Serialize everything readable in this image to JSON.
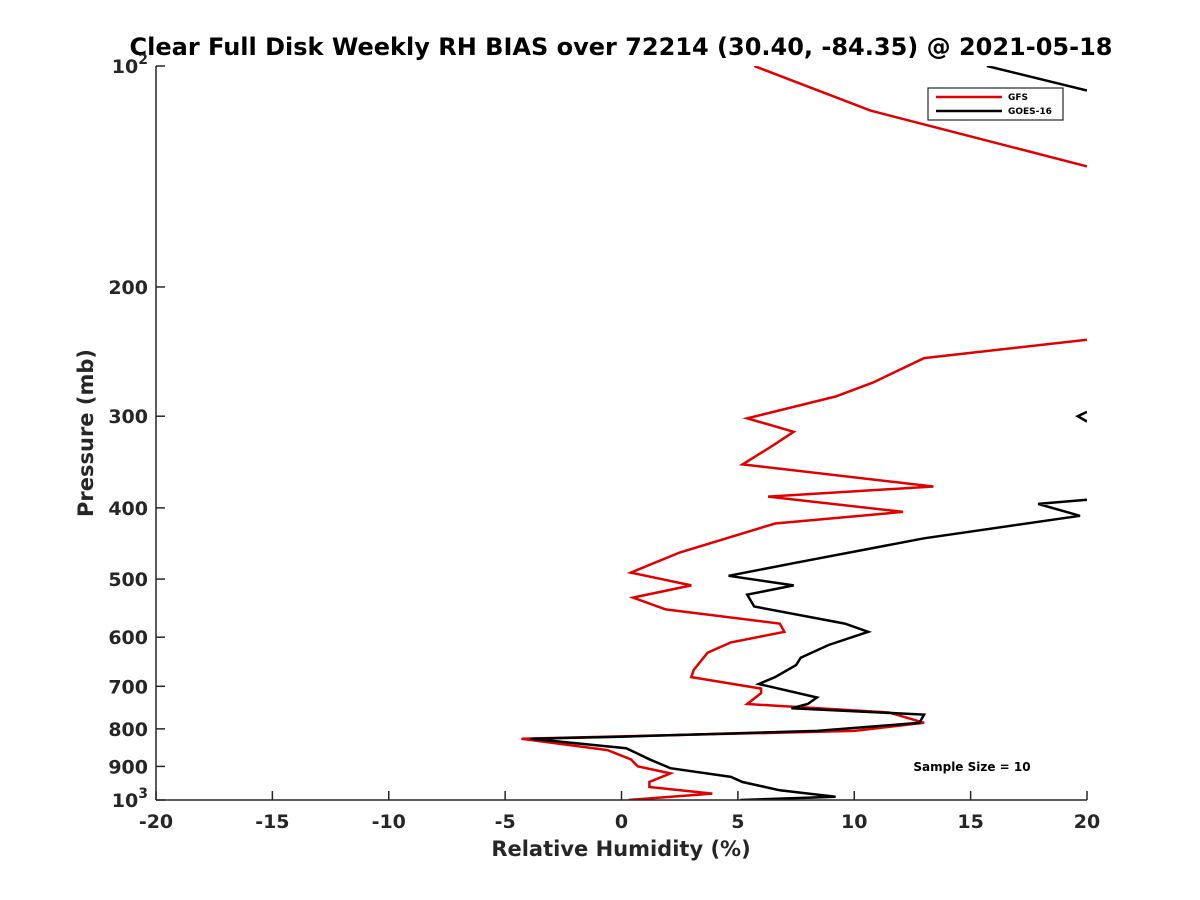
{
  "chart_data": {
    "type": "line",
    "title": "Clear Full Disk Weekly RH BIAS over 72214 (30.40, -84.35) @ 2021-05-18",
    "xlabel": "Relative Humidity (%)",
    "ylabel": "Pressure (mb)",
    "xlim": [
      -20,
      20
    ],
    "ylim": [
      100,
      1000
    ],
    "y_scale": "log",
    "y_reversed": true,
    "grid": false,
    "legend_position": "top-right",
    "x_ticks": [
      -20,
      -15,
      -10,
      -5,
      0,
      5,
      10,
      15,
      20
    ],
    "x_tick_labels": [
      "-20",
      "-15",
      "-10",
      "-5",
      "0",
      "5",
      "10",
      "15",
      "20"
    ],
    "y_ticks": [
      100,
      200,
      300,
      400,
      500,
      600,
      700,
      800,
      900,
      1000
    ],
    "y_tick_labels": [
      {
        "base": "10",
        "exp": "2"
      },
      {
        "base": "200",
        "exp": ""
      },
      {
        "base": "300",
        "exp": ""
      },
      {
        "base": "400",
        "exp": ""
      },
      {
        "base": "500",
        "exp": ""
      },
      {
        "base": "600",
        "exp": ""
      },
      {
        "base": "700",
        "exp": ""
      },
      {
        "base": "800",
        "exp": ""
      },
      {
        "base": "900",
        "exp": ""
      },
      {
        "base": "10",
        "exp": "3"
      }
    ],
    "annotation": "Sample Size = 10",
    "series": [
      {
        "name": "GFS",
        "color": "#e00000",
        "segments": [
          {
            "x": [
              5.7,
              10.7,
              20
            ],
            "y": [
              100,
              115,
              137
            ]
          },
          {
            "x": [
              20,
              13,
              10.8,
              9.2,
              5.4,
              7.4,
              6.5,
              5.2,
              13.4,
              6.3,
              12.1,
              6.6,
              2.5,
              0.4,
              3.0,
              0.5,
              1.9,
              6.8,
              7.0,
              4.7,
              3.7,
              3.1,
              3.0,
              6.0,
              6.0,
              5.4,
              11.5,
              13.0,
              10.0,
              -4.3,
              -0.6,
              0.4,
              0.7,
              2.1,
              1.2,
              1.2,
              3.9,
              0.3
            ],
            "y": [
              236,
              250,
              270,
              282,
              302,
              315,
              329,
              349,
              374,
              386,
              405,
              420,
              460,
              490,
              510,
              530,
              550,
              575,
              590,
              610,
              630,
              665,
              680,
              705,
              715,
              740,
              760,
              785,
              805,
              825,
              855,
              880,
              900,
              920,
              945,
              960,
              980,
              1000
            ]
          }
        ]
      },
      {
        "name": "GOES-16",
        "color": "#000000",
        "segments": [
          {
            "x": [
              15.7,
              20
            ],
            "y": [
              100,
              108
            ]
          },
          {
            "x": [
              20,
              19.6,
              20
            ],
            "y": [
              296,
              300,
              305
            ]
          },
          {
            "x": [
              20,
              17.9,
              19.7,
              13.0,
              7.5,
              4.6,
              7.4,
              5.4,
              5.7,
              9.6,
              10.6,
              8.9,
              7.7,
              7.5,
              6.6,
              5.9,
              8.4,
              8.0,
              7.3,
              13.0,
              12.8,
              8.4,
              0.0,
              -3.9,
              0.2,
              1.2,
              2.1,
              4.7,
              5.2,
              6.8,
              9.2,
              5.1
            ],
            "y": [
              390,
              395,
              410,
              440,
              475,
              495,
              510,
              525,
              545,
              575,
              590,
              615,
              640,
              655,
              680,
              695,
              725,
              740,
              750,
              765,
              785,
              805,
              820,
              825,
              850,
              880,
              905,
              930,
              945,
              970,
              990,
              1000
            ]
          }
        ]
      }
    ]
  }
}
